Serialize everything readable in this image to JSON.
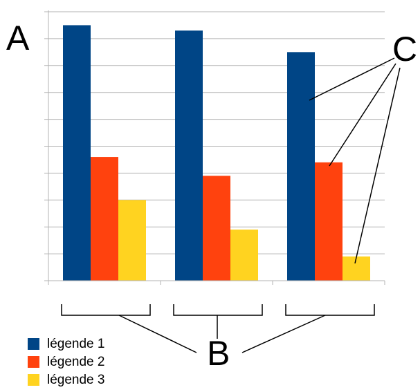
{
  "chart_data": {
    "type": "bar",
    "categories": [
      "",
      "",
      ""
    ],
    "series": [
      {
        "name": "légende 1",
        "color": "#004586",
        "values": [
          9.5,
          9.3,
          8.5
        ]
      },
      {
        "name": "légende 2",
        "color": "#FF420E",
        "values": [
          4.6,
          3.9,
          4.4
        ]
      },
      {
        "name": "légende 3",
        "color": "#FFD320",
        "values": [
          3.0,
          1.9,
          0.9
        ]
      }
    ],
    "ylim": [
      0,
      10
    ],
    "grid": true,
    "legend_position": "bottom-left",
    "title": "",
    "xlabel": "",
    "ylabel": ""
  },
  "annotations": {
    "a": "A",
    "b": "B",
    "c": "C"
  }
}
